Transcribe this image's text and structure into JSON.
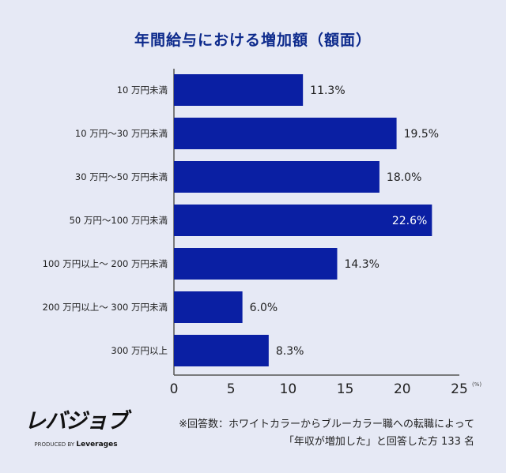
{
  "chart_data": {
    "type": "bar",
    "orientation": "horizontal",
    "title": "年間給与における増加額（額面）",
    "categories": [
      "10 万円未満",
      "10 万円～30 万円未満",
      "30 万円～50 万円未満",
      "50 万円～100 万円未満",
      "100 万円以上～ 200 万円未満",
      "200 万円以上～ 300 万円未満",
      "300 万円以上"
    ],
    "values": [
      11.3,
      19.5,
      18.0,
      22.6,
      14.3,
      6.0,
      8.3
    ],
    "value_labels": [
      "11.3%",
      "19.5%",
      "18.0%",
      "22.6%",
      "14.3%",
      "6.0%",
      "8.3%"
    ],
    "xlim": [
      0,
      25
    ],
    "xticks": [
      0,
      5,
      10,
      15,
      20,
      25
    ],
    "x_unit": "(%)",
    "grid": false,
    "bar_color": "#0a1fa3",
    "highlight_label_color": "#ffffff"
  },
  "logo": {
    "main": "レバジョブ",
    "sub_prefix": "PRODUCED BY",
    "sub_brand": "Leverages"
  },
  "note": {
    "line1": "※回答数：ホワイトカラーからブルーカラー職への転職によって",
    "line2": "「年収が増加した」と回答した方 133 名"
  }
}
